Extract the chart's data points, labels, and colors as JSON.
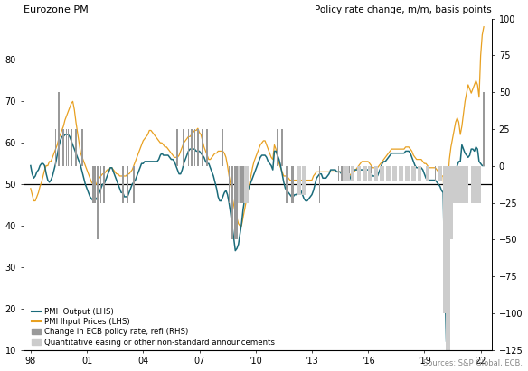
{
  "title_left": "Eurozone PM",
  "title_right": "Policy rate change, m/m, basis points",
  "source": "Sources: S&P Global, ECB.",
  "ylim_left": [
    10,
    90
  ],
  "ylim_right": [
    -125,
    100
  ],
  "yticks_left": [
    10,
    20,
    30,
    40,
    50,
    60,
    70,
    80
  ],
  "yticks_right": [
    -125,
    -100,
    -75,
    -50,
    -25,
    0,
    25,
    50,
    75,
    100
  ],
  "xtick_positions": [
    1998,
    2001,
    2004,
    2007,
    2010,
    2013,
    2016,
    2019,
    2022
  ],
  "xtick_labels": [
    "98",
    "01",
    "04",
    "07",
    "'10",
    "'13",
    "'16",
    "'19",
    "22"
  ],
  "xlim": [
    1997.6,
    2022.6
  ],
  "hline_y": 50,
  "color_output": "#1a6b7a",
  "color_input": "#e8a020",
  "color_refi": "#999999",
  "color_qe": "#cccccc",
  "legend": [
    {
      "label": "PMI  Output (LHS)",
      "color": "#1a6b7a",
      "type": "line"
    },
    {
      "label": "PMI Ihput Prices (LHS)",
      "color": "#e8a020",
      "type": "line"
    },
    {
      "label": "Change in ECB policy rate, refi (RHS)",
      "color": "#999999",
      "type": "bar"
    },
    {
      "label": "Quantitative easing or other non-standard announcements",
      "color": "#cccccc",
      "type": "bar"
    }
  ],
  "pmi_dates": [
    1998.0,
    1998.083,
    1998.167,
    1998.25,
    1998.333,
    1998.417,
    1998.5,
    1998.583,
    1998.667,
    1998.75,
    1998.833,
    1998.917,
    1999.0,
    1999.083,
    1999.167,
    1999.25,
    1999.333,
    1999.417,
    1999.5,
    1999.583,
    1999.667,
    1999.75,
    1999.833,
    1999.917,
    2000.0,
    2000.083,
    2000.167,
    2000.25,
    2000.333,
    2000.417,
    2000.5,
    2000.583,
    2000.667,
    2000.75,
    2000.833,
    2000.917,
    2001.0,
    2001.083,
    2001.167,
    2001.25,
    2001.333,
    2001.417,
    2001.5,
    2001.583,
    2001.667,
    2001.75,
    2001.833,
    2001.917,
    2002.0,
    2002.083,
    2002.167,
    2002.25,
    2002.333,
    2002.417,
    2002.5,
    2002.583,
    2002.667,
    2002.75,
    2002.833,
    2002.917,
    2003.0,
    2003.083,
    2003.167,
    2003.25,
    2003.333,
    2003.417,
    2003.5,
    2003.583,
    2003.667,
    2003.75,
    2003.833,
    2003.917,
    2004.0,
    2004.083,
    2004.167,
    2004.25,
    2004.333,
    2004.417,
    2004.5,
    2004.583,
    2004.667,
    2004.75,
    2004.833,
    2004.917,
    2005.0,
    2005.083,
    2005.167,
    2005.25,
    2005.333,
    2005.417,
    2005.5,
    2005.583,
    2005.667,
    2005.75,
    2005.833,
    2005.917,
    2006.0,
    2006.083,
    2006.167,
    2006.25,
    2006.333,
    2006.417,
    2006.5,
    2006.583,
    2006.667,
    2006.75,
    2006.833,
    2006.917,
    2007.0,
    2007.083,
    2007.167,
    2007.25,
    2007.333,
    2007.417,
    2007.5,
    2007.583,
    2007.667,
    2007.75,
    2007.833,
    2007.917,
    2008.0,
    2008.083,
    2008.167,
    2008.25,
    2008.333,
    2008.417,
    2008.5,
    2008.583,
    2008.667,
    2008.75,
    2008.833,
    2008.917,
    2009.0,
    2009.083,
    2009.167,
    2009.25,
    2009.333,
    2009.417,
    2009.5,
    2009.583,
    2009.667,
    2009.75,
    2009.833,
    2009.917,
    2010.0,
    2010.083,
    2010.167,
    2010.25,
    2010.333,
    2010.417,
    2010.5,
    2010.583,
    2010.667,
    2010.75,
    2010.833,
    2010.917,
    2011.0,
    2011.083,
    2011.167,
    2011.25,
    2011.333,
    2011.417,
    2011.5,
    2011.583,
    2011.667,
    2011.75,
    2011.833,
    2011.917,
    2012.0,
    2012.083,
    2012.167,
    2012.25,
    2012.333,
    2012.417,
    2012.5,
    2012.583,
    2012.667,
    2012.75,
    2012.833,
    2012.917,
    2013.0,
    2013.083,
    2013.167,
    2013.25,
    2013.333,
    2013.417,
    2013.5,
    2013.583,
    2013.667,
    2013.75,
    2013.833,
    2013.917,
    2014.0,
    2014.083,
    2014.167,
    2014.25,
    2014.333,
    2014.417,
    2014.5,
    2014.583,
    2014.667,
    2014.75,
    2014.833,
    2014.917,
    2015.0,
    2015.083,
    2015.167,
    2015.25,
    2015.333,
    2015.417,
    2015.5,
    2015.583,
    2015.667,
    2015.75,
    2015.833,
    2015.917,
    2016.0,
    2016.083,
    2016.167,
    2016.25,
    2016.333,
    2016.417,
    2016.5,
    2016.583,
    2016.667,
    2016.75,
    2016.833,
    2016.917,
    2017.0,
    2017.083,
    2017.167,
    2017.25,
    2017.333,
    2017.417,
    2017.5,
    2017.583,
    2017.667,
    2017.75,
    2017.833,
    2017.917,
    2018.0,
    2018.083,
    2018.167,
    2018.25,
    2018.333,
    2018.417,
    2018.5,
    2018.583,
    2018.667,
    2018.75,
    2018.833,
    2018.917,
    2019.0,
    2019.083,
    2019.167,
    2019.25,
    2019.333,
    2019.417,
    2019.5,
    2019.583,
    2019.667,
    2019.75,
    2019.833,
    2019.917,
    2020.0,
    2020.083,
    2020.167,
    2020.25,
    2020.333,
    2020.417,
    2020.5,
    2020.583,
    2020.667,
    2020.75,
    2020.833,
    2020.917,
    2021.0,
    2021.083,
    2021.167,
    2021.25,
    2021.333,
    2021.417,
    2021.5,
    2021.583,
    2021.667,
    2021.75,
    2021.833,
    2021.917,
    2022.0,
    2022.083,
    2022.167
  ],
  "pmi_output": [
    54.5,
    52.5,
    51.5,
    52.0,
    53.0,
    53.5,
    54.5,
    55.0,
    55.0,
    54.5,
    52.5,
    51.0,
    50.5,
    51.0,
    52.0,
    53.5,
    55.0,
    57.0,
    59.0,
    60.5,
    61.5,
    61.5,
    62.0,
    62.0,
    62.0,
    61.5,
    60.5,
    59.5,
    58.5,
    57.5,
    56.5,
    55.5,
    54.5,
    53.0,
    51.5,
    50.0,
    49.0,
    48.0,
    47.0,
    46.5,
    46.0,
    46.0,
    46.5,
    47.0,
    48.0,
    49.0,
    50.0,
    50.0,
    51.0,
    52.0,
    53.0,
    54.0,
    54.0,
    53.0,
    52.0,
    51.0,
    50.0,
    49.0,
    48.0,
    48.0,
    47.0,
    47.0,
    47.0,
    48.0,
    49.0,
    50.0,
    50.5,
    51.0,
    52.0,
    53.0,
    54.0,
    55.0,
    55.0,
    55.5,
    55.5,
    55.5,
    55.5,
    55.5,
    55.5,
    55.5,
    55.5,
    55.5,
    56.0,
    57.0,
    57.5,
    57.0,
    57.0,
    57.0,
    57.0,
    56.5,
    56.0,
    56.0,
    55.5,
    54.5,
    53.5,
    52.5,
    52.5,
    53.5,
    55.0,
    56.0,
    57.0,
    58.0,
    58.5,
    58.5,
    58.5,
    58.5,
    58.0,
    58.0,
    58.0,
    57.5,
    57.0,
    56.5,
    55.5,
    55.0,
    55.0,
    54.0,
    53.0,
    52.0,
    50.5,
    49.0,
    47.0,
    46.0,
    46.0,
    47.0,
    48.0,
    48.5,
    47.5,
    45.5,
    43.0,
    40.0,
    37.0,
    34.0,
    34.5,
    35.5,
    38.0,
    40.5,
    44.0,
    46.5,
    47.5,
    48.5,
    49.5,
    50.5,
    51.5,
    52.5,
    53.5,
    54.5,
    55.5,
    56.5,
    57.0,
    57.0,
    57.0,
    56.5,
    55.5,
    55.0,
    54.5,
    53.5,
    58.0,
    58.0,
    57.0,
    56.0,
    54.5,
    52.5,
    50.5,
    49.0,
    48.5,
    48.0,
    47.5,
    47.0,
    47.0,
    47.5,
    47.5,
    48.0,
    48.5,
    48.5,
    47.5,
    46.5,
    46.0,
    46.0,
    46.5,
    47.0,
    47.5,
    48.5,
    50.0,
    51.5,
    52.0,
    52.5,
    52.5,
    51.5,
    51.5,
    51.5,
    52.0,
    52.5,
    53.5,
    53.5,
    53.5,
    53.5,
    53.0,
    53.0,
    53.0,
    52.5,
    52.0,
    51.5,
    51.0,
    51.0,
    51.0,
    52.0,
    53.0,
    53.5,
    53.5,
    53.5,
    53.5,
    53.5,
    53.5,
    53.5,
    53.5,
    53.5,
    53.5,
    53.5,
    52.5,
    52.0,
    52.0,
    52.0,
    52.0,
    53.0,
    54.0,
    55.0,
    55.5,
    55.5,
    56.0,
    56.5,
    57.0,
    57.5,
    57.5,
    57.5,
    57.5,
    57.5,
    57.5,
    57.5,
    57.5,
    57.5,
    58.0,
    58.0,
    58.0,
    57.5,
    56.5,
    55.5,
    54.5,
    54.0,
    54.0,
    54.0,
    54.0,
    53.5,
    52.5,
    51.5,
    51.0,
    51.0,
    51.0,
    51.0,
    51.0,
    51.0,
    50.5,
    50.0,
    49.5,
    48.5,
    48.0,
    29.0,
    12.0,
    33.0,
    47.0,
    50.5,
    51.5,
    52.5,
    53.5,
    54.5,
    55.5,
    55.5,
    59.5,
    58.5,
    57.5,
    57.0,
    56.5,
    57.0,
    58.5,
    58.5,
    58.0,
    59.0,
    58.5,
    55.5,
    55.0,
    54.5,
    54.5
  ],
  "pmi_input_prices": [
    49.0,
    47.5,
    46.0,
    46.0,
    47.0,
    48.0,
    49.5,
    50.5,
    52.0,
    53.5,
    54.5,
    54.5,
    55.5,
    55.5,
    56.5,
    57.5,
    58.5,
    59.5,
    61.0,
    62.0,
    63.0,
    64.0,
    65.5,
    66.5,
    67.5,
    68.5,
    69.5,
    70.0,
    68.0,
    65.0,
    62.5,
    60.0,
    57.5,
    56.5,
    55.5,
    54.5,
    53.5,
    52.5,
    51.5,
    50.5,
    50.0,
    50.0,
    50.0,
    51.0,
    51.5,
    52.0,
    52.5,
    52.5,
    53.0,
    53.5,
    53.5,
    54.0,
    54.0,
    53.5,
    53.0,
    52.5,
    52.5,
    52.0,
    52.0,
    52.0,
    52.0,
    52.0,
    52.5,
    52.5,
    53.0,
    53.5,
    54.5,
    55.5,
    56.5,
    57.5,
    58.5,
    59.5,
    60.5,
    61.0,
    61.5,
    62.0,
    63.0,
    63.0,
    62.5,
    62.0,
    61.5,
    61.0,
    60.5,
    60.0,
    60.0,
    59.5,
    59.0,
    59.0,
    58.5,
    58.0,
    57.5,
    57.0,
    56.5,
    56.5,
    56.5,
    57.0,
    58.0,
    59.0,
    60.0,
    60.5,
    61.0,
    61.5,
    61.5,
    62.0,
    62.5,
    63.0,
    63.0,
    63.5,
    62.5,
    62.0,
    60.5,
    59.0,
    58.0,
    57.0,
    56.0,
    56.0,
    56.5,
    57.0,
    57.5,
    57.5,
    58.0,
    58.0,
    58.0,
    58.0,
    57.5,
    56.5,
    54.5,
    52.0,
    50.0,
    47.0,
    45.0,
    43.0,
    42.0,
    40.5,
    40.0,
    40.0,
    42.0,
    44.0,
    46.0,
    48.0,
    50.0,
    52.0,
    54.0,
    55.5,
    56.5,
    57.5,
    58.5,
    59.5,
    60.0,
    60.5,
    60.5,
    59.5,
    58.5,
    57.5,
    56.5,
    56.0,
    59.5,
    58.5,
    56.5,
    55.0,
    54.0,
    53.0,
    52.0,
    52.0,
    52.0,
    51.5,
    51.0,
    51.0,
    51.0,
    51.0,
    51.0,
    51.0,
    51.0,
    51.0,
    51.0,
    51.0,
    51.0,
    51.0,
    51.0,
    51.0,
    51.0,
    52.0,
    52.5,
    53.0,
    53.0,
    53.0,
    53.0,
    53.0,
    53.0,
    53.0,
    53.0,
    53.0,
    53.0,
    53.0,
    53.0,
    53.0,
    53.0,
    53.0,
    53.0,
    53.0,
    53.0,
    53.0,
    52.5,
    52.0,
    52.0,
    52.5,
    52.5,
    53.0,
    53.5,
    54.0,
    54.5,
    55.0,
    55.5,
    55.5,
    55.5,
    55.5,
    55.5,
    55.0,
    54.5,
    54.0,
    54.0,
    54.0,
    54.0,
    54.5,
    55.0,
    55.5,
    56.0,
    56.5,
    57.0,
    57.5,
    58.0,
    58.5,
    58.5,
    58.5,
    58.5,
    58.5,
    58.5,
    58.5,
    58.5,
    58.5,
    59.0,
    59.0,
    59.0,
    58.5,
    58.0,
    57.0,
    56.5,
    56.0,
    56.0,
    56.0,
    56.0,
    55.5,
    55.0,
    55.0,
    54.5,
    54.0,
    54.0,
    54.0,
    54.0,
    54.0,
    53.5,
    53.0,
    52.5,
    52.0,
    52.0,
    45.0,
    43.0,
    50.0,
    56.0,
    59.0,
    61.0,
    63.0,
    65.0,
    66.0,
    65.0,
    62.0,
    64.0,
    67.0,
    70.0,
    72.0,
    74.0,
    73.0,
    72.0,
    73.0,
    74.0,
    75.0,
    74.0,
    71.0,
    81.0,
    86.0,
    88.0
  ],
  "ecb_refi_events": [
    [
      1999.333,
      25
    ],
    [
      1999.5,
      50
    ],
    [
      1999.75,
      25
    ],
    [
      1999.917,
      25
    ],
    [
      2000.0,
      25
    ],
    [
      2000.167,
      25
    ],
    [
      2000.417,
      25
    ],
    [
      2000.75,
      25
    ],
    [
      2001.333,
      -25
    ],
    [
      2001.417,
      -25
    ],
    [
      2001.583,
      -50
    ],
    [
      2001.75,
      -25
    ],
    [
      2001.917,
      -25
    ],
    [
      2002.917,
      -25
    ],
    [
      2003.167,
      -25
    ],
    [
      2003.5,
      -25
    ],
    [
      2005.833,
      25
    ],
    [
      2006.167,
      25
    ],
    [
      2006.417,
      25
    ],
    [
      2006.583,
      25
    ],
    [
      2006.75,
      25
    ],
    [
      2006.917,
      25
    ],
    [
      2007.167,
      25
    ],
    [
      2007.417,
      25
    ],
    [
      2008.25,
      25
    ],
    [
      2008.583,
      -25
    ],
    [
      2008.75,
      -50
    ],
    [
      2008.917,
      -50
    ],
    [
      2009.0,
      -50
    ],
    [
      2009.167,
      -25
    ],
    [
      2009.25,
      -25
    ],
    [
      2009.333,
      -25
    ],
    [
      2011.167,
      25
    ],
    [
      2011.417,
      25
    ],
    [
      2011.667,
      -25
    ],
    [
      2011.917,
      -25
    ],
    [
      2012.0,
      -25
    ],
    [
      2013.417,
      -25
    ],
    [
      2014.417,
      -10
    ],
    [
      2014.583,
      -10
    ],
    [
      2015.0,
      -5
    ],
    [
      2016.167,
      -5
    ],
    [
      2019.583,
      -10
    ],
    [
      2022.167,
      50
    ]
  ],
  "qe_events": [
    [
      2009.083,
      -25
    ],
    [
      2009.25,
      -25
    ],
    [
      2009.5,
      -25
    ],
    [
      2012.333,
      -20
    ],
    [
      2012.583,
      -20
    ],
    [
      2014.75,
      -10
    ],
    [
      2014.917,
      -10
    ],
    [
      2015.167,
      -10
    ],
    [
      2015.5,
      -10
    ],
    [
      2015.833,
      -10
    ],
    [
      2016.083,
      -10
    ],
    [
      2016.417,
      -10
    ],
    [
      2016.75,
      -10
    ],
    [
      2017.083,
      -10
    ],
    [
      2017.417,
      -10
    ],
    [
      2017.75,
      -10
    ],
    [
      2018.083,
      -10
    ],
    [
      2018.417,
      -10
    ],
    [
      2018.75,
      -10
    ],
    [
      2019.167,
      -10
    ],
    [
      2019.833,
      -10
    ],
    [
      2020.083,
      -100
    ],
    [
      2020.25,
      -125
    ],
    [
      2020.417,
      -50
    ],
    [
      2020.583,
      -25
    ],
    [
      2020.75,
      -25
    ],
    [
      2020.917,
      -25
    ],
    [
      2021.083,
      -25
    ],
    [
      2021.25,
      -25
    ],
    [
      2021.583,
      -25
    ],
    [
      2021.75,
      -25
    ],
    [
      2021.917,
      -25
    ]
  ]
}
